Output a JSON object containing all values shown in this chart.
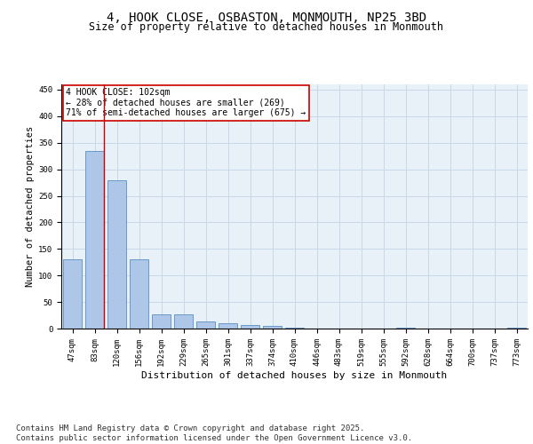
{
  "title_line1": "4, HOOK CLOSE, OSBASTON, MONMOUTH, NP25 3BD",
  "title_line2": "Size of property relative to detached houses in Monmouth",
  "xlabel": "Distribution of detached houses by size in Monmouth",
  "ylabel": "Number of detached properties",
  "categories": [
    "47sqm",
    "83sqm",
    "120sqm",
    "156sqm",
    "192sqm",
    "229sqm",
    "265sqm",
    "301sqm",
    "337sqm",
    "374sqm",
    "410sqm",
    "446sqm",
    "483sqm",
    "519sqm",
    "555sqm",
    "592sqm",
    "628sqm",
    "664sqm",
    "700sqm",
    "737sqm",
    "773sqm"
  ],
  "values": [
    130,
    335,
    280,
    130,
    27,
    27,
    13,
    10,
    6,
    5,
    2,
    0,
    0,
    0,
    0,
    2,
    0,
    0,
    0,
    0,
    2
  ],
  "bar_color": "#aec6e8",
  "bar_edge_color": "#5a8fc2",
  "vline_color": "#cc0000",
  "annotation_text": "4 HOOK CLOSE: 102sqm\n← 28% of detached houses are smaller (269)\n71% of semi-detached houses are larger (675) →",
  "annotation_box_color": "#ffffff",
  "annotation_box_edge": "#cc0000",
  "annotation_fontsize": 7,
  "ylim": [
    0,
    460
  ],
  "yticks": [
    0,
    50,
    100,
    150,
    200,
    250,
    300,
    350,
    400,
    450
  ],
  "grid_color": "#c8d8e8",
  "background_color": "#e8f0f8",
  "footer": "Contains HM Land Registry data © Crown copyright and database right 2025.\nContains public sector information licensed under the Open Government Licence v3.0.",
  "title_fontsize": 10,
  "subtitle_fontsize": 8.5,
  "footer_fontsize": 6.5,
  "ylabel_fontsize": 7.5,
  "xlabel_fontsize": 8,
  "tick_fontsize": 6.5
}
